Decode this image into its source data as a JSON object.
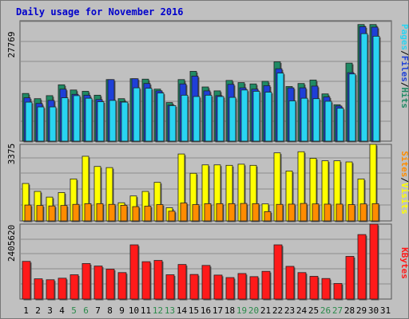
{
  "title": "Daily usage for November 2016",
  "colors": {
    "hits": "#1f8a64",
    "files": "#1e3fd8",
    "pages": "#29d4f2",
    "visits": "#ffff00",
    "sites": "#ff8c00",
    "kbytes": "#ff1a1a",
    "weekend_label": "#2a8a4a",
    "weekday_label": "#000000",
    "background": "#c0c0c0"
  },
  "chart_data": [
    {
      "type": "bar",
      "title": "Daily usage for November 2016",
      "panel": "hits_files_pages",
      "ymax_label": "27769",
      "ylim": [
        0,
        27769
      ],
      "categories": [
        "1",
        "2",
        "3",
        "4",
        "5",
        "6",
        "7",
        "8",
        "9",
        "10",
        "11",
        "12",
        "13",
        "14",
        "15",
        "16",
        "17",
        "18",
        "19",
        "20",
        "21",
        "22",
        "23",
        "24",
        "25",
        "26",
        "27",
        "28",
        "29",
        "30",
        "31"
      ],
      "legend": [
        "Pages",
        "/",
        "Files",
        "/",
        "Hits"
      ],
      "series": [
        {
          "name": "Hits",
          "values": [
            11000,
            9800,
            10500,
            13000,
            11800,
            11500,
            10600,
            14200,
            9800,
            14400,
            14300,
            12000,
            8900,
            14200,
            16100,
            12500,
            11600,
            14000,
            13500,
            13200,
            13800,
            18300,
            12600,
            13300,
            14100,
            10900,
            8400,
            18000,
            26900,
            26900,
            0
          ]
        },
        {
          "name": "Files",
          "values": [
            10000,
            8700,
            9400,
            12000,
            10800,
            10600,
            9600,
            14200,
            9100,
            14400,
            13300,
            11600,
            8300,
            13200,
            15000,
            11600,
            10500,
            13100,
            12300,
            12000,
            12800,
            16700,
            12300,
            12300,
            12700,
            10200,
            8100,
            15800,
            26400,
            26300,
            0
          ]
        },
        {
          "name": "Pages",
          "values": [
            9000,
            7900,
            7900,
            10000,
            10500,
            9900,
            9100,
            9400,
            9000,
            12300,
            12200,
            11100,
            8200,
            10600,
            10300,
            10600,
            10300,
            10100,
            11800,
            11500,
            11300,
            15700,
            9300,
            9900,
            9800,
            9200,
            7600,
            15500,
            24800,
            24200,
            0
          ]
        }
      ]
    },
    {
      "type": "bar",
      "panel": "visits_sites",
      "ymax_label": "3375",
      "ylim": [
        0,
        3375
      ],
      "categories": [
        "1",
        "2",
        "3",
        "4",
        "5",
        "6",
        "7",
        "8",
        "9",
        "10",
        "11",
        "12",
        "13",
        "14",
        "15",
        "16",
        "17",
        "18",
        "19",
        "20",
        "21",
        "22",
        "23",
        "24",
        "25",
        "26",
        "27",
        "28",
        "29",
        "30",
        "31"
      ],
      "legend": [
        "Sites",
        "/",
        "Visits"
      ],
      "series": [
        {
          "name": "Visits",
          "values": [
            1650,
            1300,
            1050,
            1250,
            1850,
            2850,
            2400,
            2350,
            800,
            1100,
            1300,
            1700,
            580,
            2950,
            2100,
            2470,
            2470,
            2450,
            2500,
            2450,
            750,
            3000,
            2200,
            3050,
            2760,
            2650,
            2650,
            2600,
            1850,
            3375,
            0
          ]
        },
        {
          "name": "Sites",
          "values": [
            700,
            680,
            660,
            680,
            730,
            760,
            760,
            730,
            690,
            630,
            650,
            720,
            430,
            790,
            720,
            760,
            760,
            760,
            770,
            760,
            410,
            730,
            740,
            770,
            750,
            740,
            740,
            720,
            750,
            760,
            0
          ]
        }
      ]
    },
    {
      "type": "bar",
      "panel": "kbytes",
      "ymax_label": "2405620",
      "ylim": [
        0,
        2405620
      ],
      "categories": [
        "1",
        "2",
        "3",
        "4",
        "5",
        "6",
        "7",
        "8",
        "9",
        "10",
        "11",
        "12",
        "13",
        "14",
        "15",
        "16",
        "17",
        "18",
        "19",
        "20",
        "21",
        "22",
        "23",
        "24",
        "25",
        "26",
        "27",
        "28",
        "29",
        "30",
        "31"
      ],
      "legend": [
        "KBytes"
      ],
      "series": [
        {
          "name": "KBytes",
          "values": [
            1210000,
            650000,
            620000,
            670000,
            780000,
            1140000,
            1060000,
            960000,
            850000,
            1740000,
            1200000,
            1240000,
            780000,
            1110000,
            790000,
            1080000,
            770000,
            690000,
            820000,
            720000,
            890000,
            1740000,
            1050000,
            850000,
            730000,
            660000,
            500000,
            1370000,
            2070000,
            2405620,
            0
          ]
        }
      ]
    }
  ]
}
